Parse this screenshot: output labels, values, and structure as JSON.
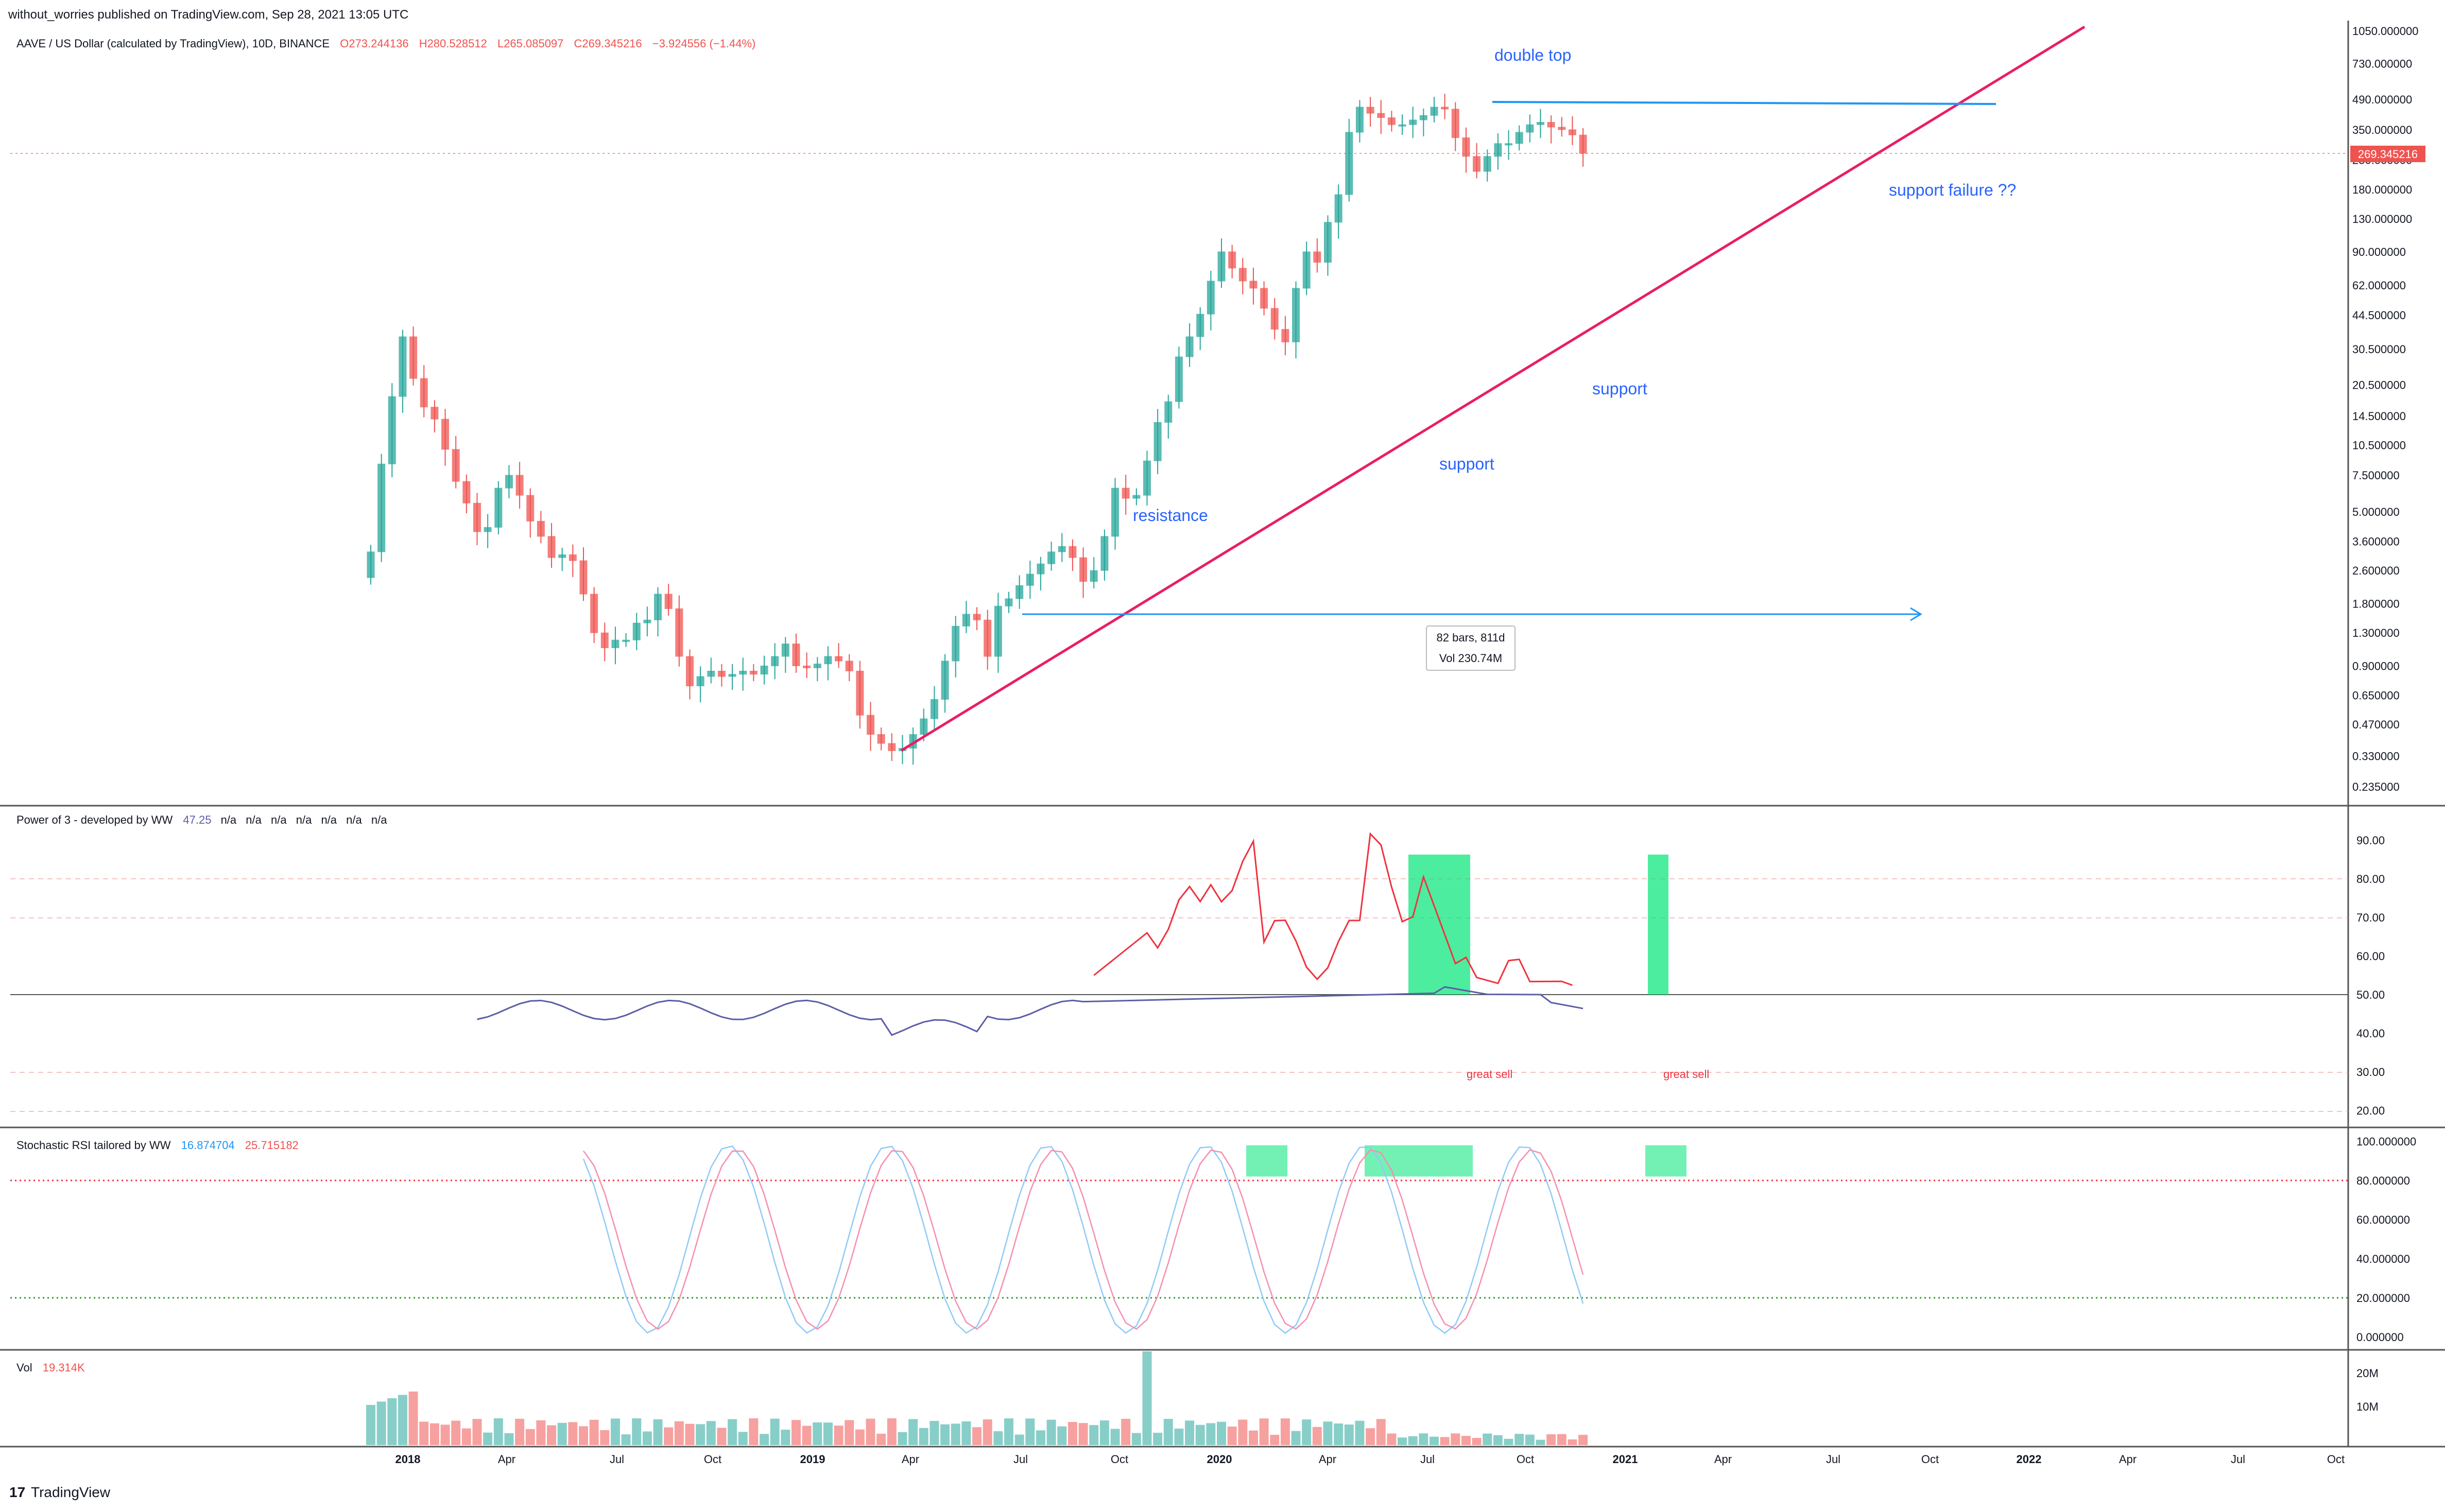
{
  "header": {
    "published": "without_worries published on TradingView.com, Sep 28, 2021 13:05 UTC",
    "symbol": "AAVE / US Dollar (calculated by TradingView), 10D, BINANCE",
    "o": "O273.244136",
    "h": "H280.528512",
    "l": "L265.085097",
    "c": "C269.345216",
    "chg": "−3.924556 (−1.44%)"
  },
  "colors": {
    "up": "#26a69a",
    "down": "#ef5350",
    "trend": "#e91e63",
    "blue": "#2962ff",
    "rsi_line": "#5b5ea6",
    "green": "#00e676"
  },
  "price_axis": {
    "labels": [
      "1050.000000",
      "730.000000",
      "490.000000",
      "350.000000",
      "250.000000",
      "180.000000",
      "130.000000",
      "90.000000",
      "62.000000",
      "44.500000",
      "30.500000",
      "20.500000",
      "14.500000",
      "10.500000",
      "7.500000",
      "5.000000",
      "3.600000",
      "2.600000",
      "1.800000",
      "1.300000",
      "0.900000",
      "0.650000",
      "0.470000",
      "0.330000",
      "0.235000"
    ],
    "last_price": "269.345216"
  },
  "annotations": {
    "double_top": "double top",
    "support_failure": "support failure ??",
    "support1": "support",
    "support2": "support",
    "resistance": "resistance",
    "measure_bars": "82 bars, 811d",
    "measure_vol": "Vol 230.74M"
  },
  "power3": {
    "title": "Power of 3 - developed by WW",
    "value": "47.25",
    "na": [
      "n/a",
      "n/a",
      "n/a",
      "n/a",
      "n/a",
      "n/a",
      "n/a"
    ],
    "great_sell_1": "great sell",
    "great_sell_2": "great sell",
    "axis": [
      "90.00",
      "80.00",
      "70.00",
      "60.00",
      "50.00",
      "40.00",
      "30.00",
      "20.00"
    ]
  },
  "stoch": {
    "title": "Stochastic RSI tailored by WW",
    "k": "16.874704",
    "d": "25.715182",
    "axis": [
      "100.000000",
      "80.000000",
      "60.000000",
      "40.000000",
      "20.000000",
      "0.000000"
    ]
  },
  "volume": {
    "title": "Vol",
    "value": "19.314K",
    "axis": [
      "20M",
      "10M"
    ]
  },
  "time_axis": [
    "2018",
    "Apr",
    "Jul",
    "Oct",
    "2019",
    "Apr",
    "Jul",
    "Oct",
    "2020",
    "Apr",
    "Jul",
    "Oct",
    "2021",
    "Apr",
    "Jul",
    "Oct",
    "2022",
    "Apr",
    "Jul",
    "Oct"
  ],
  "footer": {
    "brand": "TradingView"
  },
  "chart_data": {
    "type": "candlestick",
    "timeframe": "10D",
    "y_scale": "log",
    "candles_close": [
      3.2,
      8.5,
      18,
      35,
      22,
      16,
      14,
      10,
      7,
      5.5,
      4,
      4.2,
      6.5,
      7.5,
      6,
      4.5,
      3.8,
      3,
      3.1,
      2.9,
      2.0,
      1.3,
      1.1,
      1.2,
      1.2,
      1.45,
      1.5,
      2.0,
      1.7,
      1.0,
      0.72,
      0.8,
      0.85,
      0.8,
      0.82,
      0.85,
      0.82,
      0.9,
      1.0,
      1.15,
      0.9,
      0.88,
      0.92,
      1.0,
      0.95,
      0.85,
      0.52,
      0.42,
      0.38,
      0.35,
      0.36,
      0.42,
      0.5,
      0.62,
      0.95,
      1.4,
      1.6,
      1.5,
      1.0,
      1.75,
      1.9,
      2.2,
      2.5,
      2.8,
      3.2,
      3.4,
      3.0,
      2.3,
      2.6,
      3.8,
      6.5,
      5.8,
      6.0,
      8.8,
      13.5,
      17,
      28,
      35,
      45,
      65,
      90,
      75,
      65,
      60,
      48,
      38,
      33,
      60,
      90,
      80,
      125,
      170,
      340,
      450,
      420,
      400,
      370,
      370,
      390,
      410,
      450,
      440,
      320,
      260,
      220,
      260,
      300,
      300,
      340,
      370,
      380,
      360,
      350,
      330,
      269
    ]
  }
}
